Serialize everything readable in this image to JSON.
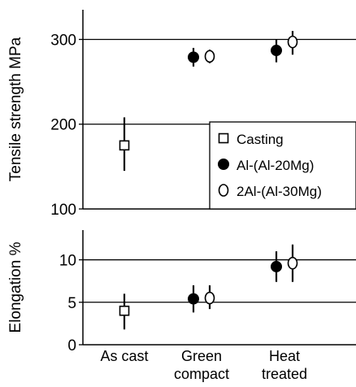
{
  "chart_data": [
    {
      "type": "scatter",
      "ylabel": "Tensile strength MPa",
      "ylim": [
        100,
        335
      ],
      "yticks": [
        "100",
        "200",
        "300"
      ],
      "gridlines": [
        200,
        300
      ],
      "categories": [
        "As cast",
        "Green compact",
        "Heat treated"
      ],
      "series": [
        {
          "name": "Casting",
          "marker": "open-square",
          "points": [
            {
              "x": "As cast",
              "y": 175,
              "low": 145,
              "high": 208
            }
          ]
        },
        {
          "name": "Al-(Al-20Mg)",
          "marker": "filled-circle",
          "points": [
            {
              "x": "Green compact",
              "y": 279,
              "low": 268,
              "high": 290
            },
            {
              "x": "Heat treated",
              "y": 287,
              "low": 273,
              "high": 300
            }
          ]
        },
        {
          "name": "2Al-(Al-30Mg)",
          "marker": "open-circle",
          "points": [
            {
              "x": "Green compact",
              "y": 280,
              "low": 272,
              "high": 288
            },
            {
              "x": "Heat treated",
              "y": 297,
              "low": 282,
              "high": 310
            }
          ]
        }
      ],
      "legend": "lower-right"
    },
    {
      "type": "scatter",
      "ylabel": "Elongation %",
      "ylim": [
        0,
        13.5
      ],
      "yticks": [
        "0",
        "5",
        "10"
      ],
      "gridlines": [
        5,
        10
      ],
      "categories": [
        "As cast",
        "Green compact",
        "Heat treated"
      ],
      "series": [
        {
          "name": "Casting",
          "marker": "open-square",
          "points": [
            {
              "x": "As cast",
              "y": 4,
              "low": 1.8,
              "high": 6
            }
          ]
        },
        {
          "name": "Al-(Al-20Mg)",
          "marker": "filled-circle",
          "points": [
            {
              "x": "Green compact",
              "y": 5.4,
              "low": 3.8,
              "high": 7
            },
            {
              "x": "Heat treated",
              "y": 9.2,
              "low": 7.4,
              "high": 11
            }
          ]
        },
        {
          "name": "2Al-(Al-30Mg)",
          "marker": "open-circle",
          "points": [
            {
              "x": "Green compact",
              "y": 5.5,
              "low": 4.2,
              "high": 7
            },
            {
              "x": "Heat treated",
              "y": 9.6,
              "low": 7.4,
              "high": 11.8
            }
          ]
        }
      ]
    }
  ],
  "x_tick_labels": [
    [
      "As cast"
    ],
    [
      "Green",
      "compact"
    ],
    [
      "Heat",
      "treated"
    ]
  ]
}
